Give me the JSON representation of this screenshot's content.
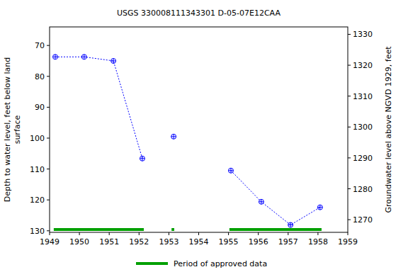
{
  "chart_data": {
    "type": "line",
    "title": "USGS 330008111343301 D-05-07E12CAA",
    "y_label": [
      "Depth to water level, feet below land",
      "surface"
    ],
    "y2_label": "Groundwater level above NGVD 1929, feet",
    "x": [
      1949.19,
      1950.16,
      1951.14,
      1952.11,
      1952.6,
      1953.16,
      1953.6,
      1955.08,
      1956.1,
      1957.08,
      1958.07
    ],
    "series": [
      {
        "color": "#0000ff",
        "marker": "circle-cross",
        "line_style": "dotted",
        "values": [
          73.7,
          73.7,
          75.0,
          106.6,
          null,
          99.5,
          null,
          110.5,
          120.6,
          128.1,
          122.4
        ]
      }
    ],
    "xlim": [
      1949,
      1959
    ],
    "xticks": [
      1949,
      1950,
      1951,
      1952,
      1953,
      1954,
      1955,
      1956,
      1957,
      1958,
      1959
    ],
    "ylim": [
      130.5,
      64
    ],
    "yticks": [
      70,
      80,
      90,
      100,
      110,
      120,
      130
    ],
    "y2lim": [
      1265.9,
      1332.4
    ],
    "y2ticks": [
      1270,
      1280,
      1290,
      1300,
      1310,
      1320,
      1330
    ],
    "approved_periods": {
      "name": "Period of approved data",
      "color": "#00a000",
      "ranges": [
        [
          1949.14,
          1952.16
        ],
        [
          1953.09,
          1953.18
        ],
        [
          1955.03,
          1958.12
        ]
      ]
    },
    "grid": false,
    "legend": "bottom"
  }
}
